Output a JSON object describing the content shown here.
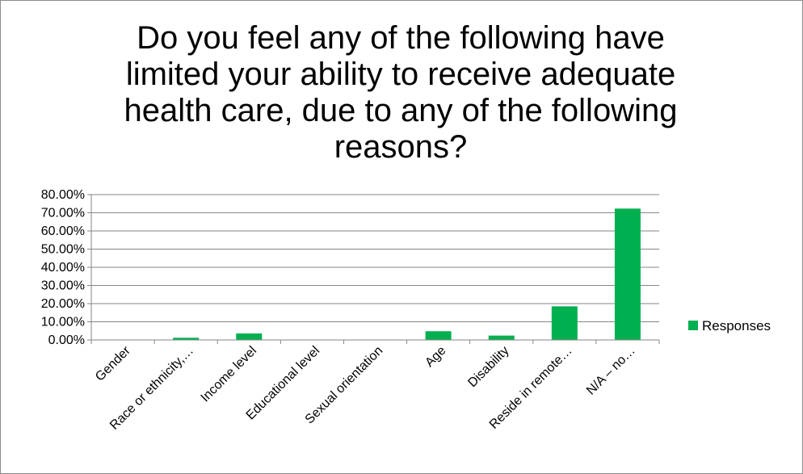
{
  "chart_data": {
    "type": "bar",
    "title": "Do you feel any of the following have limited your ability to receive adequate health care, due to any of the following reasons?",
    "categories": [
      "Gender",
      "Race or ethnicity,…",
      "Income level",
      "Educational level",
      "Sexual orientation",
      "Age",
      "Disability",
      "Reside in remote…",
      "N/A – no…"
    ],
    "series": [
      {
        "name": "Responses",
        "values": [
          0.0,
          1.2,
          3.6,
          0.0,
          0.0,
          4.8,
          2.4,
          18.5,
          72.3
        ],
        "color": "#00b050"
      }
    ],
    "yticks": [
      "0.00%",
      "10.00%",
      "20.00%",
      "30.00%",
      "40.00%",
      "50.00%",
      "60.00%",
      "70.00%",
      "80.00%"
    ],
    "ylim": [
      0,
      80
    ],
    "grid": true,
    "legend": "right"
  }
}
